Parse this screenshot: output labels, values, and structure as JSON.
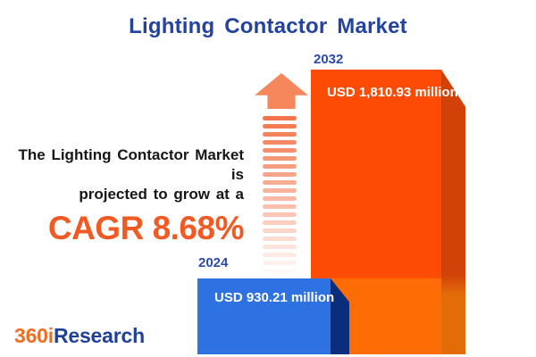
{
  "title": "Lighting Contactor Market",
  "description": {
    "line1": "The Lighting Contactor Market is",
    "line2": "projected to grow at a",
    "cagr": "CAGR 8.68%"
  },
  "logo": {
    "prefix": "360i",
    "suffix": "Research"
  },
  "chart_data": {
    "type": "bar",
    "title": "Lighting Contactor Market",
    "categories": [
      "2024",
      "2032"
    ],
    "values": [
      930.21,
      1810.93
    ],
    "unit": "USD million",
    "value_labels": [
      "USD 930.21 million",
      "USD 1,810.93 million"
    ],
    "cagr_percent": 8.68,
    "annotation": "The Lighting Contactor Market is projected to grow at a CAGR 8.68%",
    "orientation": "vertical",
    "grid": false,
    "legend": false,
    "bar_colors": [
      "#2e72e2",
      "#fb4b04"
    ]
  },
  "colors": {
    "title_blue": "#24439e",
    "year_label_blue": "#2b4cad",
    "description_text": "#161616",
    "cagr_orange": "#f15a22",
    "arrow_orange": "#f5875c",
    "bar_2024_front": "#2e72e2",
    "bar_2024_side": "#0a2e7b",
    "bar_2032_front_top": "#fb4b04",
    "bar_2032_front_bottom": "#fd6c05",
    "bar_2032_side_top": "#d04208",
    "bar_2032_side_bottom": "#e26c08",
    "logo_orange": "#f26d22",
    "logo_blue": "#21409a"
  }
}
